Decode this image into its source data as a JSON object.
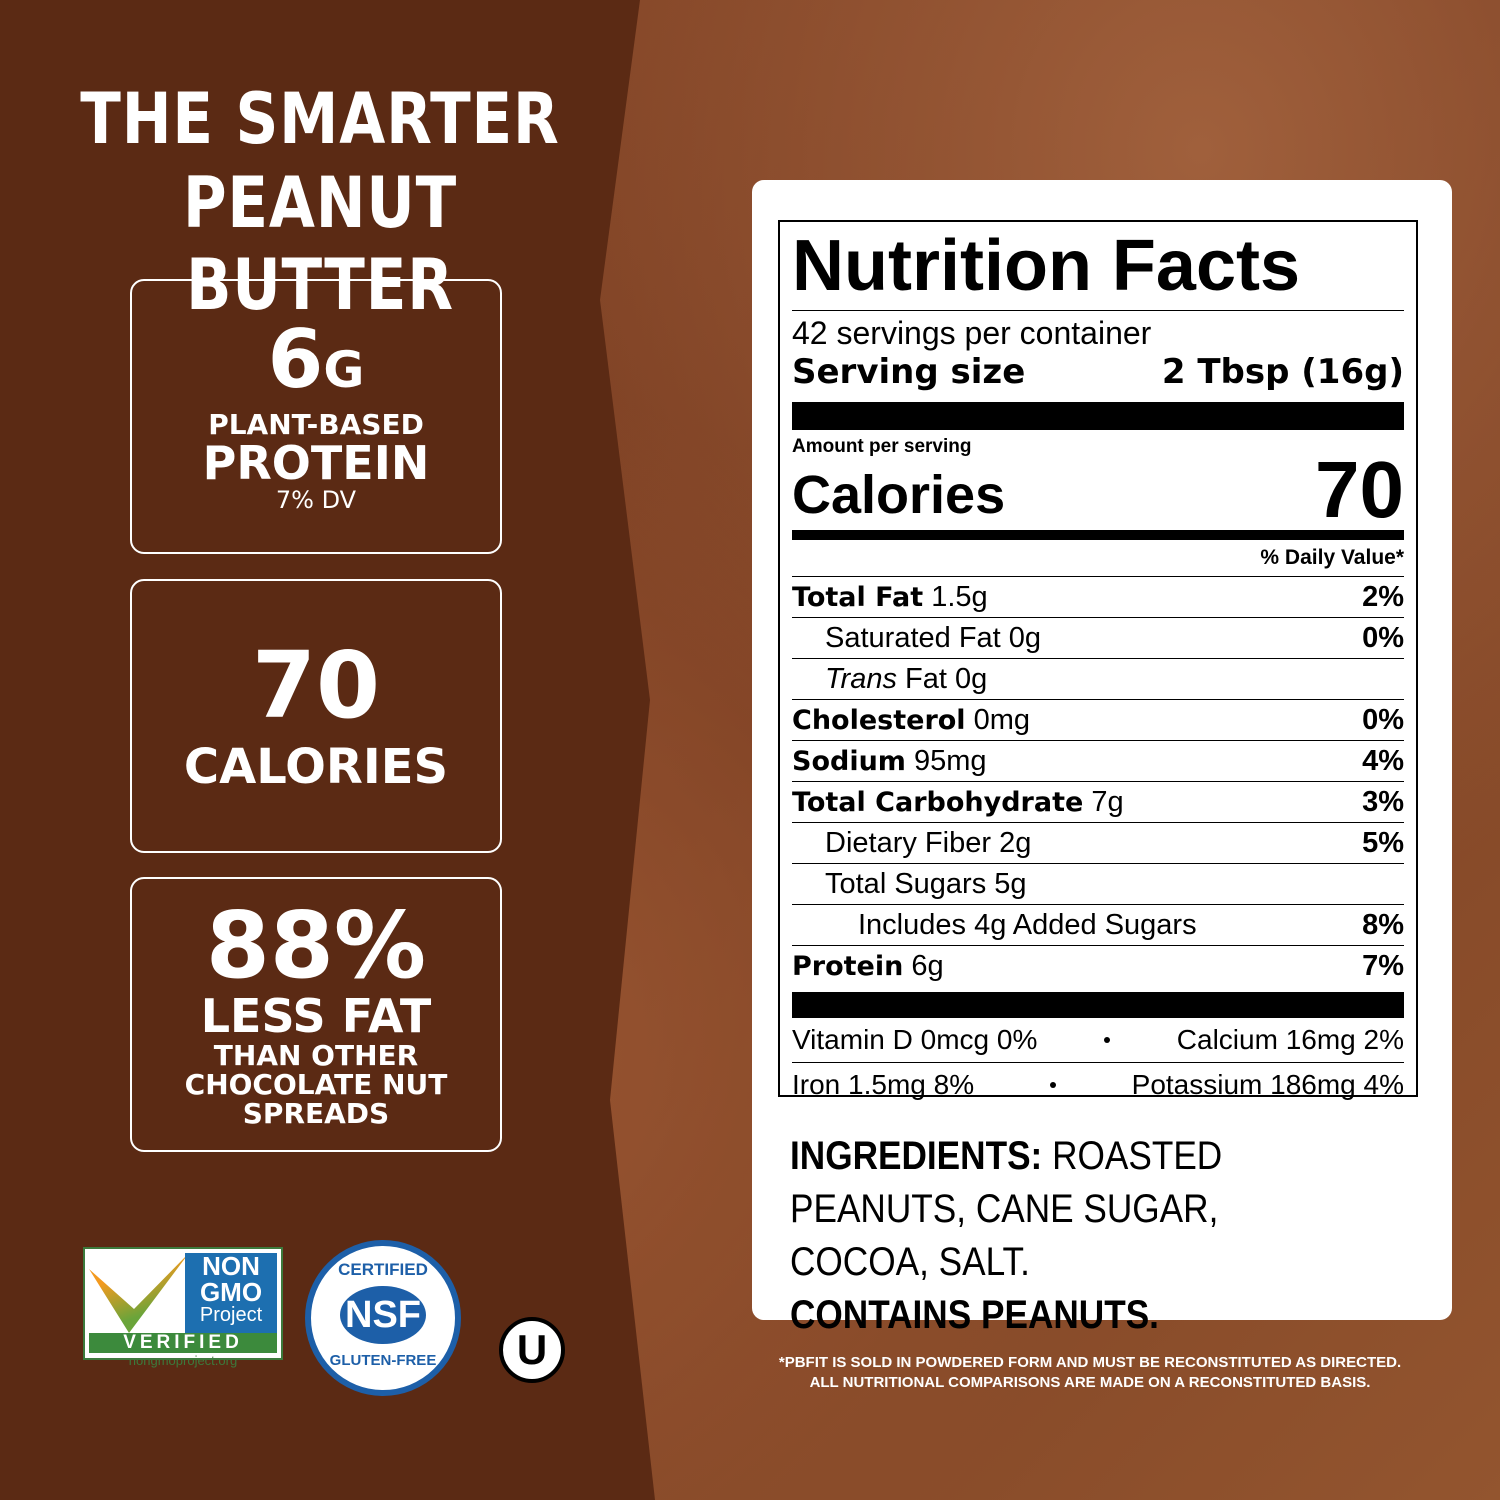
{
  "headline": [
    "THE SMARTER",
    "PEANUT BUTTER"
  ],
  "badges": [
    {
      "big": "6",
      "unit": "G",
      "lines": [
        "PLANT-BASED",
        "PROTEIN",
        "7% DV"
      ]
    },
    {
      "big": "70",
      "lines": [
        "CALORIES"
      ]
    },
    {
      "big": "88%",
      "lines": [
        "LESS FAT",
        "THAN OTHER",
        "CHOCOLATE NUT",
        "SPREADS"
      ]
    }
  ],
  "logos": {
    "nongmo": [
      "NON",
      "GMO",
      "Project",
      "VERIFIED",
      "nongmoproject.org"
    ],
    "nsf": [
      "CERTIFIED",
      "NSF",
      "GLUTEN-FREE"
    ],
    "kosher": "U"
  },
  "nutrition": {
    "title": "Nutrition Facts",
    "servings": "42 servings per container",
    "serving_size_label": "Serving size",
    "serving_size": "2 Tbsp (16g)",
    "amount_per_serving": "Amount per serving",
    "calories_label": "Calories",
    "calories": "70",
    "dv_header": "% Daily Value*",
    "rows": [
      {
        "name": "Total Fat",
        "amount": "1.5g",
        "dv": "2%",
        "bold": true
      },
      {
        "name": "Saturated Fat",
        "amount": "0g",
        "dv": "0%",
        "indent": 1
      },
      {
        "italic": "Trans",
        "name": "Fat",
        "amount": "0g",
        "indent": 1
      },
      {
        "name": "Cholesterol",
        "amount": "0mg",
        "dv": "0%",
        "bold": true
      },
      {
        "name": "Sodium",
        "amount": "95mg",
        "dv": "4%",
        "bold": true
      },
      {
        "name": "Total Carbohydrate",
        "amount": "7g",
        "dv": "3%",
        "bold": true
      },
      {
        "name": "Dietary Fiber",
        "amount": "2g",
        "dv": "5%",
        "indent": 1
      },
      {
        "name": "Total Sugars",
        "amount": "5g",
        "indent": 1
      },
      {
        "name": "Includes 4g Added Sugars",
        "dv": "8%",
        "indent": 2
      },
      {
        "name": "Protein",
        "amount": "6g",
        "dv": "7%",
        "bold": true
      }
    ],
    "vitamins": [
      [
        "Vitamin D 0mcg 0%",
        "Calcium 16mg 2%"
      ],
      [
        "Iron 1.5mg 8%",
        "Potassium 186mg 4%"
      ]
    ]
  },
  "ingredients": {
    "label": "INGREDIENTS:",
    "text": "ROASTED PEANUTS, CANE SUGAR, COCOA, SALT.",
    "contains": "CONTAINS PEANUTS."
  },
  "footnote": [
    "*PBFIT IS SOLD IN POWDERED FORM AND MUST BE RECONSTITUTED AS DIRECTED.",
    "ALL NUTRITIONAL COMPARISONS ARE MADE ON A RECONSTITUTED BASIS."
  ]
}
